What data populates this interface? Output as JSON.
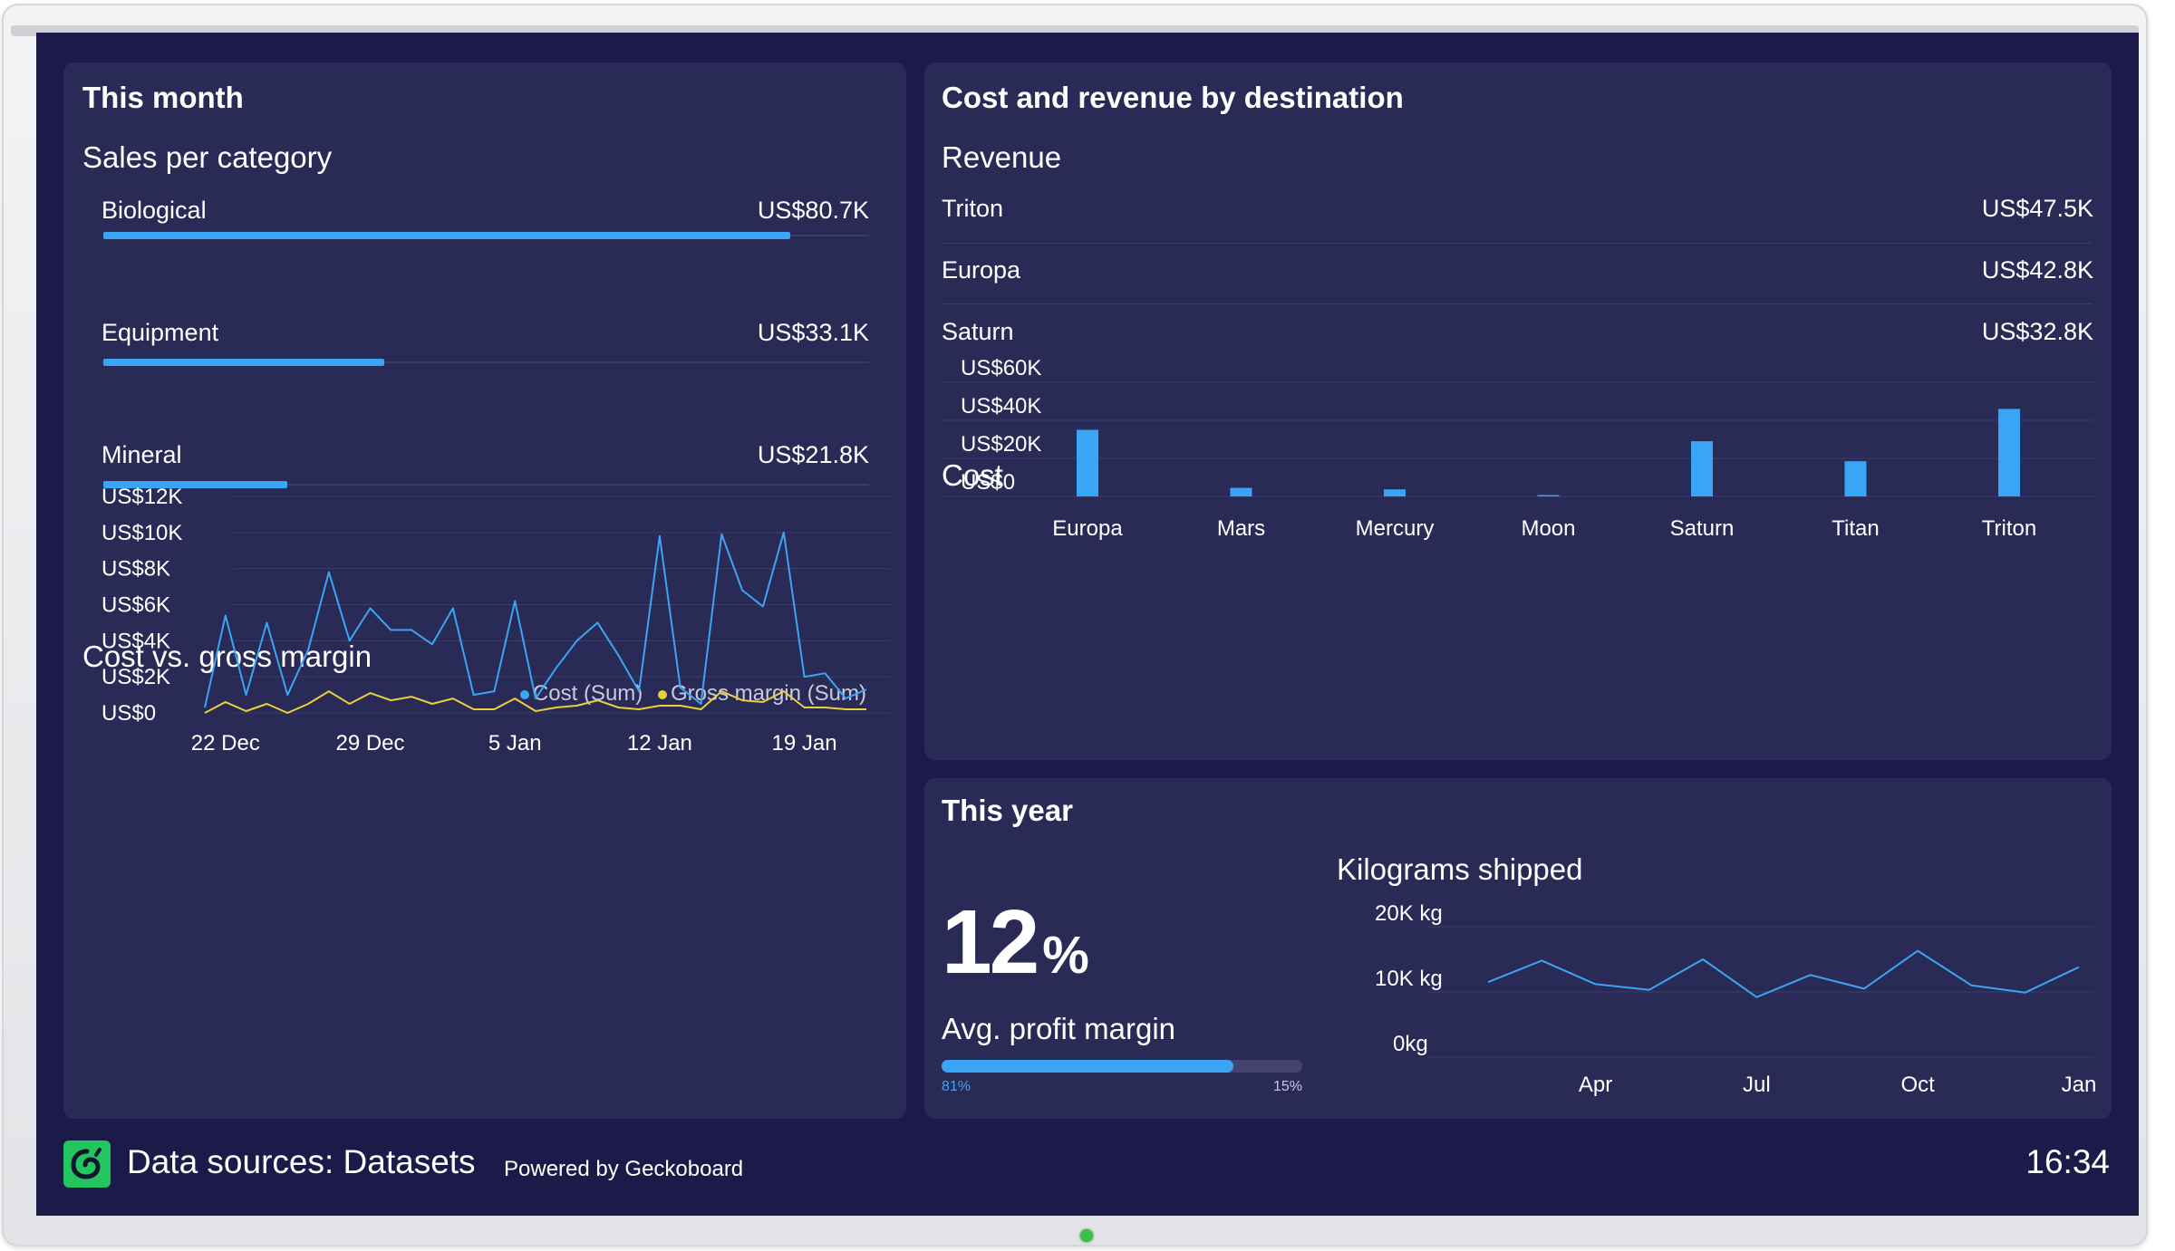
{
  "this_month": {
    "title": "This month",
    "sales": {
      "title": "Sales per category",
      "items": [
        {
          "label": "Biological",
          "value": "US$80.7K",
          "amount": 80.7
        },
        {
          "label": "Equipment",
          "value": "US$33.1K",
          "amount": 33.1
        },
        {
          "label": "Mineral",
          "value": "US$21.8K",
          "amount": 21.8
        }
      ]
    },
    "cost_margin": {
      "title": "Cost vs. gross margin",
      "legend_cost": "Cost (Sum)",
      "legend_margin": "Gross margin (Sum)",
      "cost_color": "#3ba5f5",
      "margin_color": "#e9d13b"
    }
  },
  "destination": {
    "title": "Cost and revenue by destination",
    "revenue": {
      "title": "Revenue",
      "rows": [
        {
          "label": "Triton",
          "value": "US$47.5K"
        },
        {
          "label": "Europa",
          "value": "US$42.8K"
        },
        {
          "label": "Saturn",
          "value": "US$32.8K"
        }
      ]
    },
    "cost": {
      "title": "Cost"
    }
  },
  "this_year": {
    "title": "This year",
    "big_value": "12",
    "big_unit": "%",
    "big_label": "Avg. profit margin",
    "progress_value": 0.81,
    "progress_left": "81%",
    "progress_right": "15%",
    "kg": {
      "title": "Kilograms shipped"
    }
  },
  "footer": {
    "title": "Data sources: Datasets",
    "powered": "Powered by Geckoboard",
    "time": "16:34"
  },
  "chart_data": [
    {
      "type": "line",
      "title": "Cost vs. gross margin",
      "yticks": [
        "US$12K",
        "US$10K",
        "US$8K",
        "US$6K",
        "US$4K",
        "US$2K",
        "US$0"
      ],
      "ylim": [
        0,
        12000
      ],
      "xticks": [
        "22 Dec",
        "29 Dec",
        "5 Jan",
        "12 Jan",
        "19 Jan"
      ],
      "xtick_index": [
        1,
        8,
        15,
        22,
        29
      ],
      "series": [
        {
          "name": "Cost (Sum)",
          "values": [
            300,
            5400,
            1000,
            5000,
            1000,
            3500,
            7800,
            4000,
            5800,
            4600,
            4600,
            3800,
            5800,
            1000,
            1200,
            6200,
            800,
            2500,
            4000,
            5000,
            3200,
            1200,
            9800,
            1400,
            500,
            9900,
            6800,
            5900,
            10000,
            2000,
            2200,
            800,
            1300
          ]
        },
        {
          "name": "Gross margin (Sum)",
          "values": [
            0,
            600,
            100,
            500,
            0,
            500,
            1200,
            500,
            1100,
            700,
            900,
            500,
            800,
            200,
            200,
            800,
            100,
            300,
            400,
            700,
            300,
            200,
            400,
            400,
            200,
            1200,
            700,
            600,
            1200,
            300,
            300,
            200,
            200
          ]
        }
      ]
    },
    {
      "type": "bar",
      "title": "Cost",
      "categories": [
        "Europa",
        "Mars",
        "Mercury",
        "Moon",
        "Saturn",
        "Titan",
        "Triton"
      ],
      "values": [
        35000,
        4500,
        3700,
        700,
        29000,
        18500,
        46000
      ],
      "yticks": [
        "US$60K",
        "US$40K",
        "US$20K",
        "US$0"
      ],
      "ylim": [
        0,
        60000
      ]
    },
    {
      "type": "line",
      "title": "Kilograms shipped",
      "yticks": [
        "20K kg",
        "10K kg",
        "0kg"
      ],
      "ylim": [
        0,
        20000
      ],
      "xticks": [
        "Apr",
        "Jul",
        "Oct",
        "Jan"
      ],
      "xtick_index": [
        2,
        5,
        8,
        11
      ],
      "values": [
        11500,
        14800,
        11200,
        10300,
        15000,
        9200,
        12600,
        10500,
        16300,
        11000,
        9900,
        13800
      ]
    }
  ]
}
